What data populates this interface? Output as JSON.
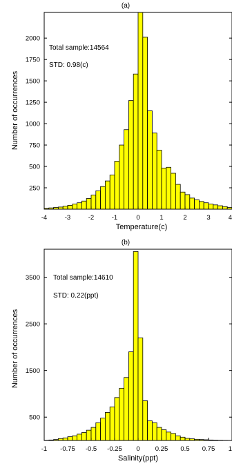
{
  "chart_data": [
    {
      "type": "bar",
      "title": "(a)",
      "xlabel": "Temperature(c)",
      "ylabel": "Number of occurrences",
      "annotations": [
        "Total sample:14564",
        "STD: 0.98(c)"
      ],
      "xlim": [
        -4,
        4
      ],
      "ylim": [
        0,
        2300
      ],
      "xticks": [
        "-4",
        "-3",
        "-2",
        "-1",
        "0",
        "1",
        "2",
        "3",
        "4"
      ],
      "yticks": [
        "250",
        "500",
        "750",
        "1000",
        "1250",
        "1500",
        "1750",
        "2000"
      ],
      "bar_color": "#ffff00",
      "bin_width": 0.2,
      "bin_centers": [
        -3.9,
        -3.7,
        -3.5,
        -3.3,
        -3.1,
        -2.9,
        -2.7,
        -2.5,
        -2.3,
        -2.1,
        -1.9,
        -1.7,
        -1.5,
        -1.3,
        -1.1,
        -0.9,
        -0.7,
        -0.5,
        -0.3,
        -0.1,
        0.1,
        0.3,
        0.5,
        0.7,
        0.9,
        1.1,
        1.3,
        1.5,
        1.7,
        1.9,
        2.1,
        2.3,
        2.5,
        2.7,
        2.9,
        3.1,
        3.3,
        3.5,
        3.7,
        3.9
      ],
      "values": [
        10,
        15,
        20,
        25,
        35,
        45,
        60,
        75,
        95,
        125,
        165,
        215,
        265,
        330,
        400,
        560,
        750,
        930,
        1270,
        1580,
        2300,
        2010,
        1150,
        890,
        690,
        480,
        490,
        420,
        290,
        200,
        170,
        130,
        110,
        90,
        75,
        60,
        50,
        40,
        30,
        20
      ]
    },
    {
      "type": "bar",
      "title": "(b)",
      "xlabel": "Salinity(ppt)",
      "ylabel": "Number of occurrences",
      "annotations": [
        "Total sample:14610",
        "STD: 0.22(ppt)"
      ],
      "xlim": [
        -1,
        1
      ],
      "ylim": [
        0,
        4100
      ],
      "xticks": [
        "-1",
        "-0.75",
        "-0.5",
        "-0.25",
        "0",
        "0.25",
        "0.5",
        "0.75",
        "1"
      ],
      "yticks": [
        "500",
        "1500",
        "2500",
        "3500"
      ],
      "bar_color": "#ffff00",
      "bin_width": 0.05,
      "bin_centers": [
        -0.975,
        -0.925,
        -0.875,
        -0.825,
        -0.775,
        -0.725,
        -0.675,
        -0.625,
        -0.575,
        -0.525,
        -0.475,
        -0.425,
        -0.375,
        -0.325,
        -0.275,
        -0.225,
        -0.175,
        -0.125,
        -0.075,
        -0.025,
        0.025,
        0.075,
        0.125,
        0.175,
        0.225,
        0.275,
        0.325,
        0.375,
        0.425,
        0.475,
        0.525,
        0.575,
        0.625,
        0.675,
        0.725,
        0.775,
        0.825,
        0.875,
        0.925,
        0.975
      ],
      "values": [
        5,
        10,
        20,
        40,
        55,
        80,
        100,
        135,
        170,
        220,
        280,
        380,
        480,
        600,
        720,
        920,
        1120,
        1350,
        1900,
        4050,
        2200,
        850,
        420,
        380,
        280,
        230,
        180,
        150,
        100,
        70,
        45,
        35,
        25,
        20,
        15,
        10,
        8,
        5,
        3,
        2
      ]
    }
  ]
}
